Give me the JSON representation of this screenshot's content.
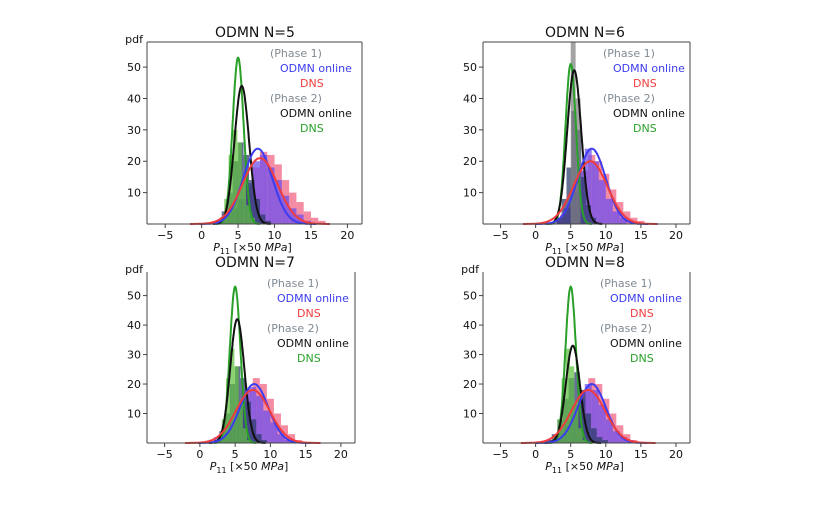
{
  "chart_data": [
    {
      "type": "histogram-with-density",
      "title": "ODMN N=5",
      "ylabel": "pdf",
      "xlabel_main": "P",
      "xlabel_sub": "11",
      "xlabel_rest": " [×50 ",
      "xlabel_unit": "MPa",
      "xlabel_close": "]",
      "xlim": [
        -7.5,
        22
      ],
      "ylim": [
        0,
        58
      ],
      "xticks": [
        -5,
        0,
        5,
        10,
        15,
        20
      ],
      "yticks": [
        10,
        20,
        30,
        40,
        50
      ],
      "legend": [
        {
          "text": "(Phase 1)",
          "color": "#808a93"
        },
        {
          "text": "ODMN online",
          "color": "#3c3cf0"
        },
        {
          "text": "DNS",
          "color": "#f03c3c"
        },
        {
          "text": "(Phase 2)",
          "color": "#808a93"
        },
        {
          "text": "ODMN online",
          "color": "#111111"
        },
        {
          "text": "DNS",
          "color": "#2aa02a"
        }
      ],
      "curves": [
        {
          "name": "Phase 2 DNS",
          "color": "#2aa02a",
          "mu": 5.0,
          "peak": 53
        },
        {
          "name": "Phase 2 ODMN online",
          "color": "#111111",
          "mu": 5.5,
          "peak": 44
        },
        {
          "name": "Phase 1 ODMN online",
          "color": "#3c3cf0",
          "mu": 7.7,
          "peak": 24
        },
        {
          "name": "Phase 1 DNS",
          "color": "#f03c3c",
          "mu": 8.0,
          "peak": 21
        }
      ],
      "hist_bars": [
        {
          "series": "Phase 1 DNS",
          "color": "#f06080",
          "x0": 2,
          "width": 1,
          "values": [
            1,
            2,
            4,
            7,
            12,
            18,
            23,
            22,
            19,
            14,
            10,
            7,
            4,
            2,
            1
          ]
        },
        {
          "series": "Phase 1 ODMN online",
          "color": "#6a4cf0",
          "x0": 2,
          "width": 1,
          "values": [
            1,
            3,
            5,
            8,
            13,
            20,
            22,
            18,
            14,
            9,
            5,
            3,
            1
          ]
        },
        {
          "series": "Phase 2 ODMN online",
          "color": "#2a3a6a",
          "x0": 2,
          "width": 0.75,
          "values": [
            1,
            4,
            10,
            20,
            26,
            22,
            14,
            8,
            3,
            1
          ]
        },
        {
          "series": "Phase 2 DNS",
          "color": "#60c040",
          "x0": 2.5,
          "width": 0.6,
          "values": [
            2,
            8,
            22,
            30,
            26,
            15,
            6,
            2
          ]
        }
      ]
    },
    {
      "type": "histogram-with-density",
      "title": "ODMN N=6",
      "ylabel": "",
      "xlabel_main": "P",
      "xlabel_sub": "11",
      "xlabel_rest": " [×50 ",
      "xlabel_unit": "MPa",
      "xlabel_close": "]",
      "xlim": [
        -7.5,
        22
      ],
      "ylim": [
        0,
        58
      ],
      "xticks": [
        -5,
        0,
        5,
        10,
        15,
        20
      ],
      "yticks": [
        10,
        20,
        30,
        40,
        50
      ],
      "legend": [
        {
          "text": "(Phase 1)",
          "color": "#808a93"
        },
        {
          "text": "ODMN online",
          "color": "#3c3cf0"
        },
        {
          "text": "DNS",
          "color": "#f03c3c"
        },
        {
          "text": "(Phase 2)",
          "color": "#808a93"
        },
        {
          "text": "ODMN online",
          "color": "#111111"
        },
        {
          "text": "DNS",
          "color": "#2aa02a"
        }
      ],
      "curves": [
        {
          "name": "Phase 2 DNS",
          "color": "#2aa02a",
          "mu": 5.0,
          "peak": 51
        },
        {
          "name": "Phase 2 ODMN online",
          "color": "#111111",
          "mu": 5.5,
          "peak": 49
        },
        {
          "name": "Phase 1 ODMN online",
          "color": "#3c3cf0",
          "mu": 8.0,
          "peak": 24
        },
        {
          "name": "Phase 1 DNS",
          "color": "#f03c3c",
          "mu": 7.8,
          "peak": 20
        }
      ],
      "hist_bars": [
        {
          "series": "Phase 1 DNS",
          "color": "#f06080",
          "x0": 2.5,
          "width": 1,
          "values": [
            1,
            3,
            6,
            11,
            17,
            22,
            20,
            16,
            11,
            7,
            4,
            2,
            1
          ]
        },
        {
          "series": "Phase 1 ODMN online",
          "color": "#6a4cf0",
          "x0": 3,
          "width": 1,
          "values": [
            2,
            5,
            10,
            17,
            24,
            20,
            14,
            8,
            4,
            2
          ]
        },
        {
          "series": "Phase 2 ODMN online",
          "color": "#2a3a6a",
          "x0": 3,
          "width": 0.7,
          "values": [
            2,
            8,
            18,
            36,
            30,
            15,
            6,
            2
          ]
        },
        {
          "series": "Phase 2 DNS",
          "color": "#808080",
          "x0": 5,
          "width": 0.7,
          "values": [
            60,
            40
          ]
        }
      ]
    },
    {
      "type": "histogram-with-density",
      "title": "ODMN N=7",
      "ylabel": "pdf",
      "xlabel_main": "P",
      "xlabel_sub": "11",
      "xlabel_rest": " [×50 ",
      "xlabel_unit": "MPa",
      "xlabel_close": "]",
      "xlim": [
        -7.5,
        22
      ],
      "ylim": [
        0,
        58
      ],
      "xticks": [
        -5,
        0,
        5,
        10,
        15,
        20
      ],
      "yticks": [
        10,
        20,
        30,
        40,
        50
      ],
      "legend": [
        {
          "text": "(Phase 1)",
          "color": "#808a93"
        },
        {
          "text": "ODMN online",
          "color": "#3c3cf0"
        },
        {
          "text": "DNS",
          "color": "#f03c3c"
        },
        {
          "text": "(Phase 2)",
          "color": "#808a93"
        },
        {
          "text": "ODMN online",
          "color": "#111111"
        },
        {
          "text": "DNS",
          "color": "#2aa02a"
        }
      ],
      "curves": [
        {
          "name": "Phase 2 DNS",
          "color": "#2aa02a",
          "mu": 5.0,
          "peak": 53
        },
        {
          "name": "Phase 2 ODMN online",
          "color": "#111111",
          "mu": 5.3,
          "peak": 42
        },
        {
          "name": "Phase 1 ODMN online",
          "color": "#3c3cf0",
          "mu": 7.7,
          "peak": 20
        },
        {
          "name": "Phase 1 DNS",
          "color": "#f03c3c",
          "mu": 7.5,
          "peak": 18
        }
      ],
      "hist_bars": [
        {
          "series": "Phase 1 DNS",
          "color": "#f06080",
          "x0": 1.5,
          "width": 1,
          "values": [
            1,
            2,
            4,
            8,
            13,
            18,
            22,
            20,
            15,
            10,
            6,
            3,
            1
          ]
        },
        {
          "series": "Phase 1 ODMN online",
          "color": "#6a4cf0",
          "x0": 2,
          "width": 1,
          "values": [
            2,
            4,
            7,
            12,
            17,
            19,
            16,
            11,
            7,
            3,
            1
          ]
        },
        {
          "series": "Phase 2 ODMN online",
          "color": "#2a3a6a",
          "x0": 2,
          "width": 0.75,
          "values": [
            1,
            4,
            10,
            20,
            26,
            22,
            14,
            8,
            3,
            1
          ]
        },
        {
          "series": "Phase 2 DNS",
          "color": "#60c040",
          "x0": 2.5,
          "width": 0.6,
          "values": [
            2,
            8,
            22,
            32,
            26,
            14,
            5,
            1
          ]
        }
      ]
    },
    {
      "type": "histogram-with-density",
      "title": "ODMN N=8",
      "ylabel": "pdf",
      "xlabel_main": "P",
      "xlabel_sub": "11",
      "xlabel_rest": " [×50 ",
      "xlabel_unit": "MPa",
      "xlabel_close": "]",
      "xlim": [
        -7.5,
        22
      ],
      "ylim": [
        0,
        58
      ],
      "xticks": [
        -5,
        0,
        5,
        10,
        15,
        20
      ],
      "yticks": [
        10,
        20,
        30,
        40,
        50
      ],
      "legend": [
        {
          "text": "(Phase 1)",
          "color": "#808a93"
        },
        {
          "text": "ODMN online",
          "color": "#3c3cf0"
        },
        {
          "text": "DNS",
          "color": "#f03c3c"
        },
        {
          "text": "(Phase 2)",
          "color": "#808a93"
        },
        {
          "text": "ODMN online",
          "color": "#111111"
        },
        {
          "text": "DNS",
          "color": "#2aa02a"
        }
      ],
      "curves": [
        {
          "name": "Phase 2 DNS",
          "color": "#2aa02a",
          "mu": 5.0,
          "peak": 53
        },
        {
          "name": "Phase 2 ODMN online",
          "color": "#111111",
          "mu": 5.3,
          "peak": 33
        },
        {
          "name": "Phase 1 ODMN online",
          "color": "#3c3cf0",
          "mu": 8.0,
          "peak": 20
        },
        {
          "name": "Phase 1 DNS",
          "color": "#f03c3c",
          "mu": 7.5,
          "peak": 18
        }
      ],
      "hist_bars": [
        {
          "series": "Phase 1 DNS",
          "color": "#f06080",
          "x0": 1.5,
          "width": 1,
          "values": [
            1,
            2,
            4,
            8,
            13,
            18,
            22,
            20,
            15,
            10,
            6,
            3,
            1
          ]
        },
        {
          "series": "Phase 1 ODMN online",
          "color": "#6a4cf0",
          "x0": 2,
          "width": 1,
          "values": [
            1,
            3,
            6,
            10,
            15,
            20,
            18,
            13,
            8,
            4,
            2,
            1
          ]
        },
        {
          "series": "Phase 2 ODMN online",
          "color": "#2a3a6a",
          "x0": 1.5,
          "width": 0.8,
          "values": [
            1,
            3,
            8,
            15,
            22,
            24,
            18,
            10,
            5,
            2,
            1
          ]
        },
        {
          "series": "Phase 2 DNS",
          "color": "#60c040",
          "x0": 2.5,
          "width": 0.6,
          "values": [
            2,
            8,
            22,
            32,
            26,
            14,
            5,
            1
          ]
        }
      ]
    }
  ]
}
